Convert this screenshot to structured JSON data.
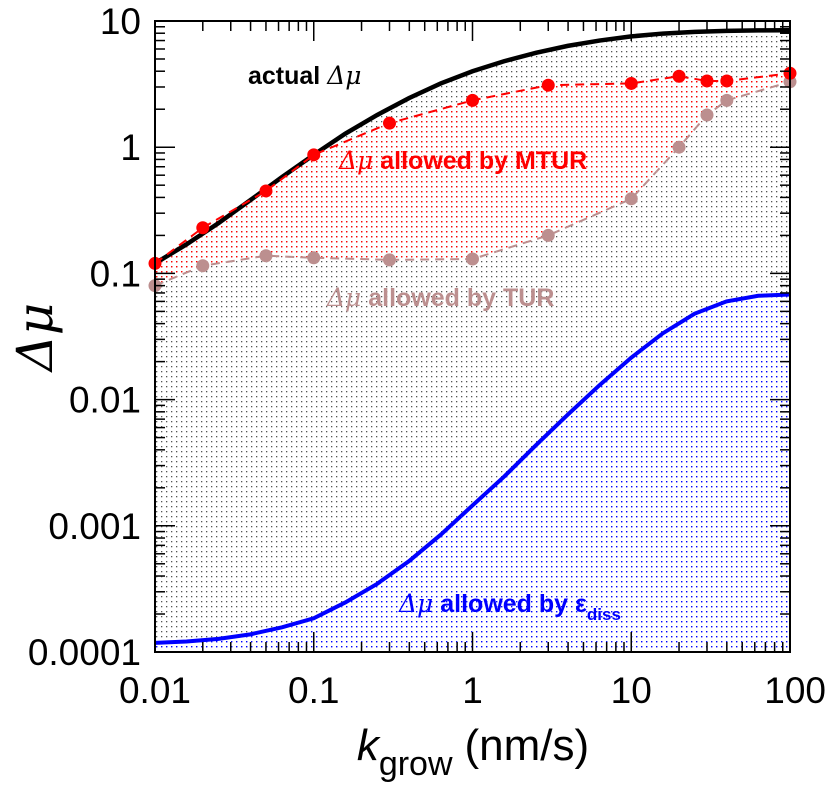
{
  "colors": {
    "actual": "#000000",
    "mtur": "#ff0000",
    "tur": "#bc8f8f",
    "diss": "#0000ff"
  },
  "chart_data": {
    "type": "line",
    "x_scale": "log",
    "y_scale": "log",
    "xlim": [
      0.01,
      100
    ],
    "ylim": [
      0.0001,
      10
    ],
    "xlabel": {
      "main": "k",
      "subscript": "grow",
      "units": "(nm/s)"
    },
    "ylabel": "Δμ",
    "x_tick_labels": [
      {
        "value": 0.01,
        "label": "0.01"
      },
      {
        "value": 0.1,
        "label": "0.1"
      },
      {
        "value": 1,
        "label": "1"
      },
      {
        "value": 10,
        "label": "10"
      },
      {
        "value": 100,
        "label": "100"
      }
    ],
    "y_tick_labels": [
      {
        "value": 0.0001,
        "label": "0.0001"
      },
      {
        "value": 0.001,
        "label": "0.001"
      },
      {
        "value": 0.01,
        "label": "0.01"
      },
      {
        "value": 0.1,
        "label": "0.1"
      },
      {
        "value": 1,
        "label": "1"
      },
      {
        "value": 10,
        "label": "10"
      }
    ],
    "series": [
      {
        "name": "actual Δμ",
        "style": "solid-line",
        "color_key": "actual",
        "x": [
          0.01,
          0.0158,
          0.0251,
          0.0398,
          0.0631,
          0.1,
          0.158,
          0.251,
          0.398,
          0.631,
          1,
          1.58,
          2.51,
          3.98,
          6.31,
          10,
          15.8,
          25.1,
          39.8,
          63.1,
          100
        ],
        "y": [
          0.12,
          0.17,
          0.25,
          0.38,
          0.58,
          0.87,
          1.28,
          1.8,
          2.45,
          3.2,
          4.0,
          4.8,
          5.6,
          6.35,
          7.0,
          7.55,
          7.95,
          8.2,
          8.35,
          8.42,
          8.45
        ]
      },
      {
        "name": "Δμ allowed by MTUR",
        "style": "dashed-markers",
        "color_key": "mtur",
        "x": [
          0.01,
          0.02,
          0.05,
          0.1,
          0.3,
          1,
          3,
          10,
          20,
          30,
          40,
          100
        ],
        "y": [
          0.12,
          0.23,
          0.45,
          0.87,
          1.55,
          2.35,
          3.1,
          3.2,
          3.65,
          3.35,
          3.35,
          3.85
        ]
      },
      {
        "name": "Δμ allowed by TUR",
        "style": "dashed-markers",
        "color_key": "tur",
        "x": [
          0.01,
          0.02,
          0.05,
          0.1,
          0.3,
          1,
          3,
          10,
          20,
          30,
          40,
          100
        ],
        "y": [
          0.08,
          0.115,
          0.138,
          0.133,
          0.128,
          0.13,
          0.2,
          0.39,
          1.0,
          1.8,
          2.35,
          3.3
        ]
      },
      {
        "name": "Δμ allowed by ε_diss",
        "style": "solid-line",
        "color_key": "diss",
        "x": [
          0.01,
          0.0158,
          0.0251,
          0.0398,
          0.0631,
          0.1,
          0.158,
          0.251,
          0.398,
          0.631,
          1,
          1.58,
          2.51,
          3.98,
          6.31,
          10,
          15.8,
          25.1,
          39.8,
          63.1,
          100
        ],
        "y": [
          0.000118,
          0.000121,
          0.000127,
          0.000138,
          0.000157,
          0.000185,
          0.000247,
          0.000347,
          0.000525,
          0.00085,
          0.00145,
          0.00245,
          0.00435,
          0.0076,
          0.013,
          0.0215,
          0.0335,
          0.048,
          0.06,
          0.0665,
          0.068
        ]
      }
    ],
    "annotations": [
      {
        "key": "actual",
        "prefix": "actual ",
        "greek": "Δμ",
        "suffix": "",
        "sub": "",
        "color_key": "actual"
      },
      {
        "key": "mtur",
        "prefix": "",
        "greek": "Δμ",
        "suffix": " allowed by MTUR",
        "sub": "",
        "color_key": "mtur"
      },
      {
        "key": "tur",
        "prefix": "",
        "greek": "Δμ",
        "suffix": " allowed by TUR",
        "sub": "",
        "color_key": "tur"
      },
      {
        "key": "diss",
        "prefix": "",
        "greek": "Δμ",
        "suffix": " allowed by ε",
        "sub": "diss",
        "color_key": "diss"
      }
    ]
  }
}
